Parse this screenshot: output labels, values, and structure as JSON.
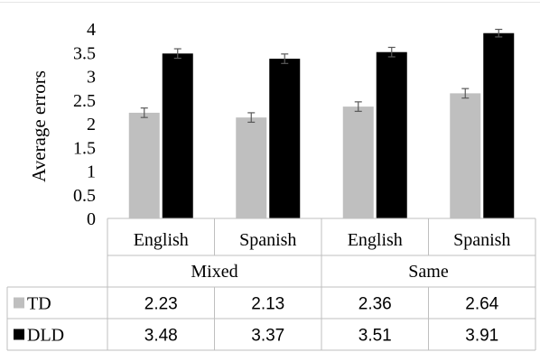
{
  "chart_data": {
    "type": "bar",
    "ylabel": "Average errors",
    "ylim": [
      0,
      4
    ],
    "yticks": [
      "0",
      "0.5",
      "1",
      "1.5",
      "2",
      "2.5",
      "3",
      "3.5",
      "4"
    ],
    "categories": [
      "English",
      "Spanish",
      "English",
      "Spanish"
    ],
    "groups": [
      {
        "label": "Mixed",
        "span": 2
      },
      {
        "label": "Same",
        "span": 2
      }
    ],
    "series": [
      {
        "name": "TD",
        "color": "#bfbfbf",
        "values": [
          2.23,
          2.13,
          2.36,
          2.64
        ],
        "value_labels": [
          "2.23",
          "2.13",
          "2.36",
          "2.64"
        ],
        "error": [
          0.1,
          0.1,
          0.1,
          0.1
        ]
      },
      {
        "name": "DLD",
        "color": "#000000",
        "values": [
          3.48,
          3.37,
          3.51,
          3.91
        ],
        "value_labels": [
          "3.48",
          "3.37",
          "3.51",
          "3.91"
        ],
        "error": [
          0.1,
          0.1,
          0.1,
          0.08
        ]
      }
    ],
    "grid": false,
    "legend": "data-table"
  }
}
